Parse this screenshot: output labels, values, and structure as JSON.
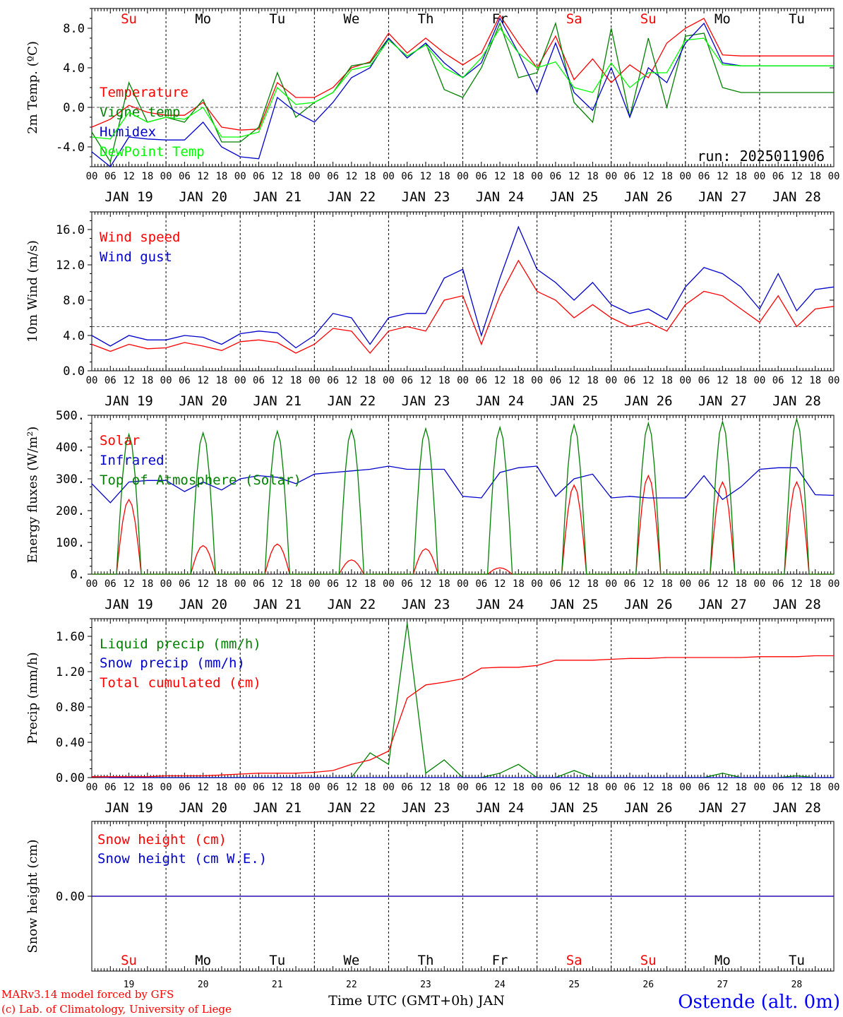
{
  "days": [
    "JAN 19",
    "JAN 20",
    "JAN 21",
    "JAN 22",
    "JAN 23",
    "JAN 24",
    "JAN 25",
    "JAN 26",
    "JAN 27",
    "JAN 28"
  ],
  "weekdays": [
    "Su",
    "Mo",
    "Tu",
    "We",
    "Th",
    "Fr",
    "Sa",
    "Su",
    "Mo",
    "Tu"
  ],
  "weekday_colors": [
    "#ff0000",
    "#000000",
    "#000000",
    "#000000",
    "#000000",
    "#000000",
    "#ff0000",
    "#ff0000",
    "#000000",
    "#000000"
  ],
  "day_numbers": [
    "19",
    "20",
    "21",
    "22",
    "23",
    "24",
    "25",
    "26",
    "27",
    "28"
  ],
  "hour_ticks": [
    "00",
    "06",
    "12",
    "18"
  ],
  "run_label": "run: 2025011906",
  "x_title": "Time UTC (GMT+0h) JAN",
  "credit_line1": "MARv3.14 model forced by GFS",
  "credit_line2": "(c) Lab. of Climatology, University of Liege",
  "station": "Ostende (alt. 0m)",
  "chart_data": [
    {
      "type": "line",
      "ylabel": "2m Temp. (ºC)",
      "ylim": [
        -6,
        10
      ],
      "yticks": [
        "8.0",
        "4.0",
        "0.0",
        "-4.0"
      ],
      "ytick_values": [
        8,
        4,
        0,
        -4
      ],
      "reference_line": 0,
      "x_hours": [
        0,
        6,
        12,
        18,
        24,
        30,
        36,
        42,
        48,
        54,
        60,
        66,
        72,
        78,
        84,
        90,
        96,
        102,
        108,
        114,
        120,
        126,
        132,
        138,
        144,
        150,
        156,
        162,
        168,
        174,
        180,
        186,
        192,
        198,
        204,
        210,
        216,
        222,
        228,
        234,
        240
      ],
      "series": [
        {
          "name": "Temperature",
          "color": "#ff0000",
          "values": [
            -2.0,
            -1.2,
            0.2,
            -0.5,
            -0.8,
            -0.8,
            0.5,
            -2.0,
            -2.3,
            -2.2,
            2.5,
            1.0,
            1.0,
            2.0,
            4.0,
            4.6,
            7.5,
            5.5,
            7.0,
            5.5,
            4.3,
            5.5,
            9.3,
            6.5,
            4.0,
            7.2,
            2.8,
            4.9,
            2.5,
            4.3,
            3.0,
            6.5,
            8.0,
            9.0,
            5.3,
            5.2,
            5.2,
            5.2,
            5.2,
            5.2,
            5.2
          ]
        },
        {
          "name": "Vigne temp",
          "color": "#008000",
          "values": [
            -2.5,
            -5.5,
            2.5,
            -1.5,
            -1.0,
            -1.5,
            0.8,
            -3.5,
            -3.5,
            -2.0,
            3.5,
            -1.0,
            0.5,
            1.5,
            4.2,
            4.5,
            7.0,
            5.0,
            6.5,
            1.8,
            1.0,
            4.0,
            8.5,
            3.0,
            3.5,
            8.5,
            0.5,
            -1.5,
            8.0,
            -1.0,
            7.0,
            0.0,
            7.2,
            7.5,
            2.0,
            1.5,
            1.5,
            1.5,
            1.5,
            1.5,
            1.5
          ]
        },
        {
          "name": "Humidex",
          "color": "#0000cc",
          "values": [
            -4.5,
            -6.0,
            -3.0,
            -3.2,
            -3.3,
            -3.3,
            -1.5,
            -4.0,
            -5.0,
            -5.2,
            1.0,
            -0.5,
            -1.5,
            0.5,
            3.0,
            4.0,
            7.0,
            5.0,
            6.5,
            4.5,
            3.0,
            4.5,
            9.0,
            5.5,
            1.5,
            6.5,
            1.5,
            -0.3,
            4.0,
            -1.0,
            4.0,
            2.5,
            6.5,
            8.5,
            4.5,
            4.2,
            4.2,
            4.2,
            4.2,
            4.2,
            4.2
          ]
        },
        {
          "name": "DewPoint Temp",
          "color": "#00ff00",
          "values": [
            -3.0,
            -3.2,
            -0.5,
            -1.5,
            -1.0,
            -1.2,
            0.0,
            -3.0,
            -3.0,
            -2.5,
            2.0,
            0.3,
            0.5,
            1.5,
            3.8,
            4.2,
            6.8,
            5.2,
            6.3,
            4.0,
            3.0,
            5.0,
            8.0,
            5.5,
            4.0,
            4.6,
            2.0,
            1.5,
            4.5,
            2.0,
            3.5,
            3.5,
            6.8,
            7.0,
            4.3,
            4.2,
            4.2,
            4.2,
            4.2,
            4.2,
            4.2
          ]
        }
      ]
    },
    {
      "type": "line",
      "ylabel": "10m Wind (m/s)",
      "ylim": [
        0,
        18
      ],
      "yticks": [
        "16.0",
        "12.0",
        "8.0",
        "4.0",
        "0.0"
      ],
      "ytick_values": [
        16,
        12,
        8,
        4,
        0
      ],
      "reference_line": 5,
      "x_hours": [
        0,
        6,
        12,
        18,
        24,
        30,
        36,
        42,
        48,
        54,
        60,
        66,
        72,
        78,
        84,
        90,
        96,
        102,
        108,
        114,
        120,
        126,
        132,
        138,
        144,
        150,
        156,
        162,
        168,
        174,
        180,
        186,
        192,
        198,
        204,
        210,
        216,
        222,
        228,
        234,
        240
      ],
      "series": [
        {
          "name": "Wind speed",
          "color": "#ff0000",
          "values": [
            3.0,
            2.2,
            3.0,
            2.5,
            2.6,
            3.2,
            2.8,
            2.3,
            3.3,
            3.5,
            3.2,
            2.0,
            3.0,
            4.8,
            4.5,
            2.0,
            4.5,
            5.0,
            4.5,
            8.0,
            8.5,
            3.0,
            8.5,
            12.5,
            9.0,
            8.0,
            6.0,
            7.5,
            6.0,
            5.0,
            5.5,
            4.5,
            7.5,
            9.0,
            8.5,
            7.0,
            5.5,
            8.5,
            5.0,
            7.0,
            7.3
          ]
        },
        {
          "name": "Wind gust",
          "color": "#0000cc",
          "values": [
            4.0,
            2.8,
            4.0,
            3.5,
            3.5,
            4.0,
            3.8,
            3.0,
            4.2,
            4.5,
            4.3,
            2.6,
            4.0,
            6.5,
            6.0,
            3.0,
            6.0,
            6.5,
            6.5,
            10.5,
            11.5,
            4.0,
            10.5,
            16.3,
            11.5,
            10.0,
            8.0,
            10.0,
            7.5,
            6.5,
            7.0,
            5.8,
            9.5,
            11.7,
            11.0,
            9.5,
            7.0,
            11.0,
            6.8,
            9.2,
            9.5
          ]
        }
      ]
    },
    {
      "type": "line",
      "ylabel": "Energy fluxes (W/m²)",
      "ylim": [
        0,
        500
      ],
      "yticks": [
        "500.",
        "400.",
        "300.",
        "200.",
        "100.",
        "0."
      ],
      "ytick_values": [
        500,
        400,
        300,
        200,
        100,
        0
      ],
      "series": [
        {
          "name": "Solar",
          "color": "#ff0000",
          "peaks": [
            235,
            90,
            95,
            45,
            80,
            20,
            280,
            310,
            290,
            290
          ]
        },
        {
          "name": "Infrared",
          "color": "#0000cc",
          "x_hours": [
            0,
            6,
            12,
            18,
            24,
            30,
            36,
            42,
            48,
            54,
            60,
            66,
            72,
            78,
            84,
            90,
            96,
            102,
            108,
            114,
            120,
            126,
            132,
            138,
            144,
            150,
            156,
            162,
            168,
            174,
            180,
            186,
            192,
            198,
            204,
            210,
            216,
            222,
            228,
            234,
            240
          ],
          "values": [
            285,
            225,
            290,
            295,
            295,
            260,
            290,
            265,
            300,
            310,
            305,
            285,
            315,
            320,
            325,
            330,
            340,
            330,
            330,
            330,
            245,
            240,
            320,
            335,
            340,
            245,
            300,
            315,
            240,
            245,
            240,
            240,
            240,
            310,
            235,
            275,
            330,
            335,
            335,
            250,
            248
          ]
        },
        {
          "name": "Top of Atmosphere (Solar)",
          "color": "#008000",
          "peaks": [
            440,
            445,
            450,
            455,
            458,
            462,
            470,
            475,
            480,
            488
          ]
        }
      ]
    },
    {
      "type": "line",
      "ylabel": "Precip (mm/h)",
      "ylim": [
        0,
        1.8
      ],
      "yticks": [
        "1.60",
        "1.20",
        "0.80",
        "0.40",
        "0.00"
      ],
      "ytick_values": [
        1.6,
        1.2,
        0.8,
        0.4,
        0.0
      ],
      "x_hours": [
        0,
        6,
        12,
        18,
        24,
        30,
        36,
        42,
        48,
        54,
        60,
        66,
        72,
        78,
        84,
        90,
        96,
        102,
        108,
        114,
        120,
        126,
        132,
        138,
        144,
        150,
        156,
        162,
        168,
        174,
        180,
        186,
        192,
        198,
        204,
        210,
        216,
        222,
        228,
        234,
        240
      ],
      "series": [
        {
          "name": "Liquid precip (mm/h)",
          "color": "#008000",
          "values": [
            0.01,
            0.0,
            0.0,
            0.0,
            0.0,
            0.0,
            0.0,
            0.0,
            0.0,
            0.0,
            0.0,
            0.0,
            0.0,
            0.0,
            0.0,
            0.28,
            0.15,
            1.75,
            0.05,
            0.2,
            0.0,
            0.0,
            0.05,
            0.15,
            0.0,
            0.0,
            0.08,
            0.0,
            0.0,
            0.0,
            0.0,
            0.0,
            0.0,
            0.0,
            0.05,
            0.0,
            0.0,
            0.0,
            0.02,
            0.0,
            0.0
          ]
        },
        {
          "name": "Snow precip (mm/h)",
          "color": "#0000cc",
          "values": [
            0.01,
            0.0,
            0.0,
            0.0,
            0.0,
            0.0,
            0.0,
            0.0,
            0.0,
            0.0,
            0.0,
            0.0,
            0.0,
            0.0,
            0.0,
            0.0,
            0.0,
            0.0,
            0.0,
            0.0,
            0.0,
            0.0,
            0.0,
            0.0,
            0.0,
            0.0,
            0.0,
            0.0,
            0.0,
            0.0,
            0.0,
            0.0,
            0.0,
            0.0,
            0.0,
            0.0,
            0.0,
            0.0,
            0.0,
            0.0,
            0.0
          ]
        },
        {
          "name": "Total cumulated (cm)",
          "color": "#ff0000",
          "values": [
            0.01,
            0.01,
            0.01,
            0.01,
            0.02,
            0.02,
            0.02,
            0.03,
            0.04,
            0.05,
            0.05,
            0.05,
            0.06,
            0.08,
            0.15,
            0.2,
            0.3,
            0.9,
            1.05,
            1.08,
            1.12,
            1.24,
            1.25,
            1.25,
            1.27,
            1.33,
            1.33,
            1.33,
            1.34,
            1.35,
            1.35,
            1.36,
            1.36,
            1.36,
            1.36,
            1.36,
            1.37,
            1.37,
            1.37,
            1.38,
            1.38
          ]
        }
      ]
    },
    {
      "type": "line",
      "ylabel": "Snow height (cm)",
      "ylim": [
        -1,
        1
      ],
      "yticks": [
        "0.00"
      ],
      "ytick_values": [
        0
      ],
      "series": [
        {
          "name": "Snow height (cm)",
          "color": "#ff0000",
          "values": [
            0,
            0
          ]
        },
        {
          "name": "Snow height (cm W.E.)",
          "color": "#0000cc",
          "values": [
            0,
            0
          ]
        }
      ]
    }
  ]
}
